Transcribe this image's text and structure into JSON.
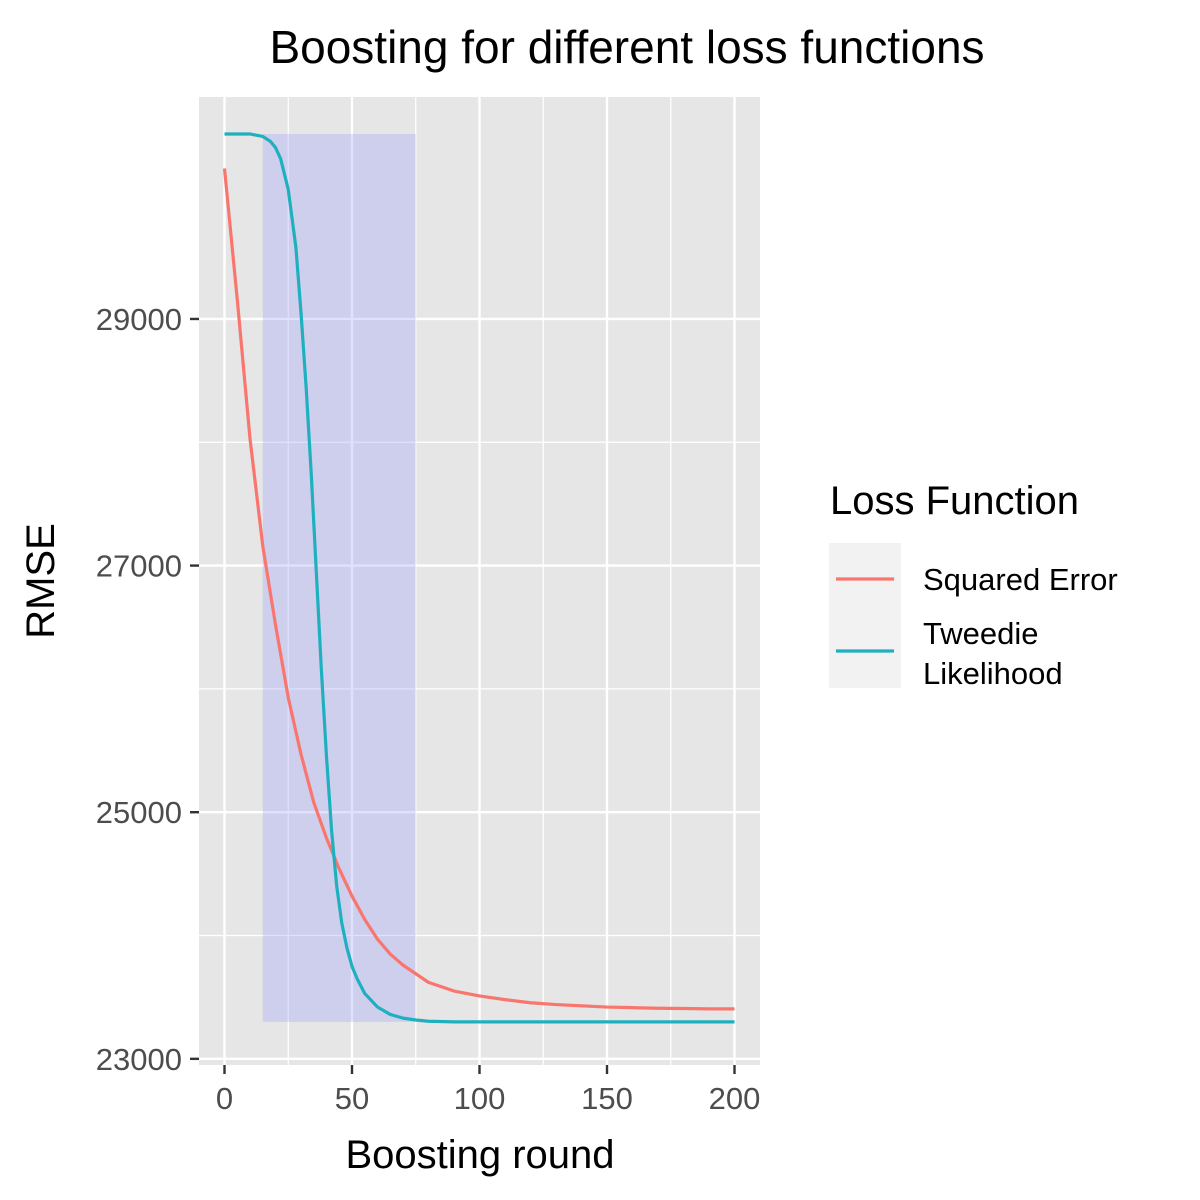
{
  "chart_data": {
    "type": "line",
    "title": "Boosting for different loss functions",
    "xlabel": "Boosting round",
    "ylabel": "RMSE",
    "xlim": [
      -10,
      210
    ],
    "ylim": [
      22950,
      30800
    ],
    "x_ticks": [
      0,
      50,
      100,
      150,
      200
    ],
    "y_ticks": [
      23000,
      25000,
      27000,
      29000
    ],
    "grid": true,
    "legend": {
      "title": "Loss Function",
      "placement": "right",
      "entries": [
        "Squared Error",
        "Tweedie\nLikelihood"
      ]
    },
    "highlight_region": {
      "x": [
        15,
        75
      ],
      "y": [
        23300,
        30500
      ],
      "color": "#9999ff"
    },
    "series": [
      {
        "name": "Squared Error",
        "color": "#F8766D",
        "x": [
          0,
          5,
          10,
          15,
          20,
          25,
          30,
          35,
          40,
          45,
          50,
          55,
          60,
          65,
          70,
          75,
          80,
          90,
          100,
          110,
          120,
          130,
          140,
          150,
          160,
          170,
          180,
          190,
          200
        ],
        "y": [
          30220,
          29160,
          28030,
          27160,
          26520,
          25930,
          25470,
          25080,
          24790,
          24540,
          24320,
          24130,
          23970,
          23850,
          23760,
          23690,
          23620,
          23550,
          23510,
          23480,
          23455,
          23440,
          23430,
          23420,
          23415,
          23410,
          23408,
          23405,
          23405
        ]
      },
      {
        "name": "Tweedie\nLikelihood",
        "color": "#1fb0bf",
        "x": [
          0,
          5,
          10,
          15,
          18,
          20,
          22,
          25,
          28,
          30,
          32,
          34,
          36,
          38,
          40,
          42,
          44,
          46,
          48,
          50,
          52,
          55,
          60,
          65,
          70,
          75,
          80,
          90,
          100,
          120,
          150,
          200
        ],
        "y": [
          30500,
          30500,
          30500,
          30480,
          30440,
          30390,
          30300,
          30050,
          29580,
          29050,
          28450,
          27750,
          26950,
          26150,
          25450,
          24850,
          24400,
          24100,
          23900,
          23750,
          23650,
          23530,
          23420,
          23360,
          23330,
          23315,
          23305,
          23300,
          23300,
          23300,
          23300,
          23300
        ]
      }
    ]
  }
}
